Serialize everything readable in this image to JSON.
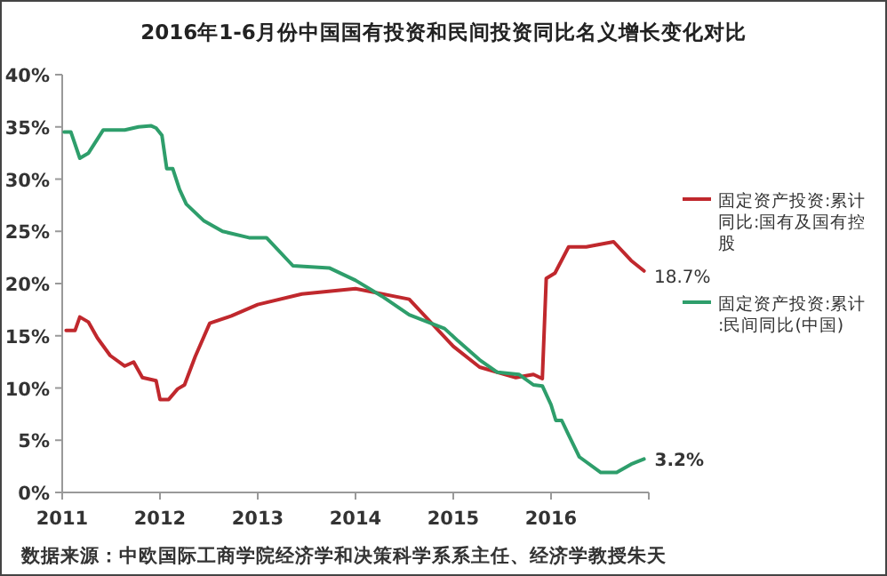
{
  "chart_data": {
    "type": "line",
    "title": "2016年1-6月份中国国有投资和民间投资同比名义增长变化对比",
    "xlim": [
      2011,
      2017
    ],
    "xticks": [
      2011,
      2012,
      2013,
      2014,
      2015,
      2016,
      {
        "value": 2017,
        "label": null
      }
    ],
    "ylim": [
      0,
      40
    ],
    "yticks": [
      {
        "value": 0,
        "label": "0%"
      },
      {
        "value": 5,
        "label": "5%"
      },
      {
        "value": 10,
        "label": "10%"
      },
      {
        "value": 15,
        "label": "15%"
      },
      {
        "value": 20,
        "label": "20%"
      },
      {
        "value": 25,
        "label": "25%"
      },
      {
        "value": 30,
        "label": "30%"
      },
      {
        "value": 35,
        "label": "35%"
      },
      {
        "value": 40,
        "label": "40%"
      }
    ],
    "grid": false,
    "legend": "right",
    "marker": "none",
    "line_style": "solid",
    "series": [
      {
        "name": "固定资产投资:累计同比:国有及国有控股",
        "color": "#c0282d",
        "x": [
          2011.04,
          2011.13,
          2011.18,
          2011.27,
          2011.36,
          2011.49,
          2011.64,
          2011.73,
          2011.82,
          2011.96,
          2012.0,
          2012.09,
          2012.18,
          2012.25,
          2012.36,
          2012.51,
          2012.73,
          2013.0,
          2013.45,
          2014.0,
          2014.55,
          2015.0,
          2015.27,
          2015.64,
          2015.82,
          2015.91,
          2015.95,
          2016.04,
          2016.18,
          2016.36,
          2016.64,
          2016.82,
          2016.95
        ],
        "values": [
          15.5,
          15.5,
          16.8,
          16.3,
          14.8,
          13.1,
          12.1,
          12.5,
          11,
          10.7,
          8.9,
          8.9,
          9.9,
          10.3,
          13,
          16.2,
          16.9,
          18,
          19,
          19.5,
          18.5,
          14,
          12,
          11,
          11.3,
          10.9,
          20.5,
          21,
          23.5,
          23.5,
          24,
          22.2,
          21.2
        ]
      },
      {
        "name": "固定资产投资:累计:民间同比(中国)",
        "color": "#2e9e6b",
        "x": [
          2011.02,
          2011.09,
          2011.18,
          2011.27,
          2011.42,
          2011.64,
          2011.78,
          2011.91,
          2011.96,
          2012.02,
          2012.07,
          2012.13,
          2012.2,
          2012.27,
          2012.45,
          2012.64,
          2012.91,
          2013.09,
          2013.36,
          2013.73,
          2014.0,
          2014.27,
          2014.55,
          2014.91,
          2015.05,
          2015.27,
          2015.45,
          2015.67,
          2015.82,
          2015.91,
          2016.0,
          2016.05,
          2016.11,
          2016.18,
          2016.29,
          2016.51,
          2016.67,
          2016.82,
          2016.95
        ],
        "values": [
          34.5,
          34.5,
          32,
          32.5,
          34.7,
          34.7,
          35,
          35.1,
          34.9,
          34.2,
          31,
          31,
          29,
          27.6,
          26,
          25,
          24.4,
          24.4,
          21.7,
          21.5,
          20.3,
          18.8,
          17,
          15.7,
          14.5,
          12.7,
          11.5,
          11.3,
          10.3,
          10.2,
          8.4,
          6.9,
          6.9,
          5.5,
          3.4,
          1.9,
          1.9,
          2.7,
          3.2
        ]
      }
    ],
    "annotations": [
      {
        "text": "3.2%",
        "x": 2016.95,
        "y": 3.2
      },
      "18.7%",
      "数据来源：中欧国际工商学院经济学和决策科学系系主任、经济学教授朱天"
    ]
  }
}
